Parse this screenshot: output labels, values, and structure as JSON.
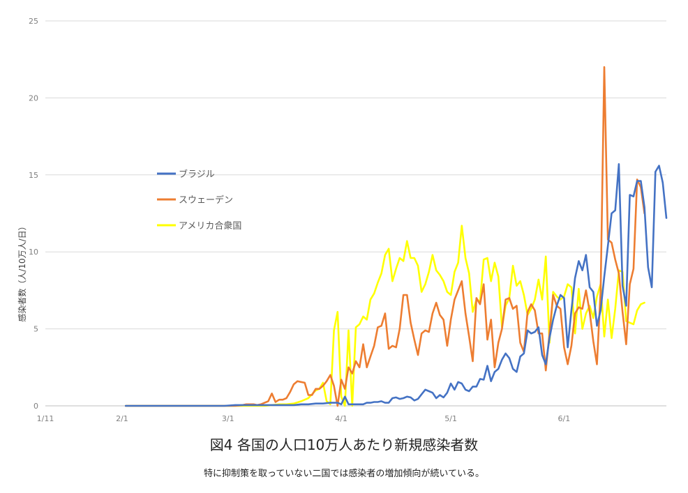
{
  "chart_data": {
    "type": "line",
    "title": "",
    "ylabel": "感染者数（人/10万人/日）",
    "xlabel": "",
    "ylim": [
      0,
      25
    ],
    "yticks": [
      "0",
      "5",
      "10",
      "15",
      "20",
      "25"
    ],
    "xtick_labels": [
      "1/11",
      "2/1",
      "3/1",
      "4/1",
      "5/1",
      "6/1"
    ],
    "grid": "horizontal",
    "legend": "left-center",
    "series": [
      {
        "name": "ブラジル",
        "color": "#4472C4",
        "points": [
          [
            22,
            0
          ],
          [
            30,
            0
          ],
          [
            40,
            0
          ],
          [
            49,
            0
          ],
          [
            52,
            0.05
          ],
          [
            54,
            0.05
          ],
          [
            56,
            0.05
          ],
          [
            58,
            0.05
          ],
          [
            60,
            0.05
          ],
          [
            62,
            0.05
          ],
          [
            64,
            0.05
          ],
          [
            66,
            0.05
          ],
          [
            68,
            0.05
          ],
          [
            70,
            0.1
          ],
          [
            72,
            0.1
          ],
          [
            74,
            0.15
          ],
          [
            76,
            0.15
          ],
          [
            78,
            0.2
          ],
          [
            80,
            0.2
          ],
          [
            81,
            0.1
          ],
          [
            82,
            0.6
          ],
          [
            83,
            0.1
          ],
          [
            84,
            0.1
          ],
          [
            85,
            0.1
          ],
          [
            86,
            0.1
          ],
          [
            87,
            0.1
          ],
          [
            88,
            0.2
          ],
          [
            89,
            0.2
          ],
          [
            90,
            0.25
          ],
          [
            91,
            0.25
          ],
          [
            92,
            0.3
          ],
          [
            93,
            0.2
          ],
          [
            94,
            0.2
          ],
          [
            95,
            0.5
          ],
          [
            96,
            0.55
          ],
          [
            97,
            0.45
          ],
          [
            98,
            0.5
          ],
          [
            99,
            0.6
          ],
          [
            100,
            0.55
          ],
          [
            101,
            0.35
          ],
          [
            102,
            0.45
          ],
          [
            103,
            0.75
          ],
          [
            104,
            1.05
          ],
          [
            105,
            0.95
          ],
          [
            106,
            0.85
          ],
          [
            107,
            0.5
          ],
          [
            108,
            0.7
          ],
          [
            109,
            0.55
          ],
          [
            110,
            0.85
          ],
          [
            111,
            1.45
          ],
          [
            112,
            1.05
          ],
          [
            113,
            1.55
          ],
          [
            114,
            1.45
          ],
          [
            115,
            1.05
          ],
          [
            116,
            0.95
          ],
          [
            117,
            1.25
          ],
          [
            118,
            1.25
          ],
          [
            119,
            1.75
          ],
          [
            120,
            1.7
          ],
          [
            121,
            2.6
          ],
          [
            122,
            1.6
          ],
          [
            123,
            2.2
          ],
          [
            124,
            2.4
          ],
          [
            125,
            3.0
          ],
          [
            126,
            3.4
          ],
          [
            127,
            3.1
          ],
          [
            128,
            2.4
          ],
          [
            129,
            2.2
          ],
          [
            130,
            3.2
          ],
          [
            131,
            3.4
          ],
          [
            132,
            4.9
          ],
          [
            133,
            4.7
          ],
          [
            134,
            4.8
          ],
          [
            135,
            5.1
          ],
          [
            136,
            3.3
          ],
          [
            137,
            2.7
          ],
          [
            138,
            4.4
          ],
          [
            139,
            5.6
          ],
          [
            140,
            6.5
          ],
          [
            141,
            7.2
          ],
          [
            142,
            7.0
          ],
          [
            143,
            3.8
          ],
          [
            144,
            6.2
          ],
          [
            145,
            8.3
          ],
          [
            146,
            9.4
          ],
          [
            147,
            8.8
          ],
          [
            148,
            9.8
          ],
          [
            149,
            7.7
          ],
          [
            150,
            7.4
          ],
          [
            151,
            5.2
          ],
          [
            152,
            6.2
          ],
          [
            153,
            8.4
          ],
          [
            154,
            10.4
          ],
          [
            155,
            12.5
          ],
          [
            156,
            12.7
          ],
          [
            157,
            15.7
          ],
          [
            158,
            7.8
          ],
          [
            159,
            6.5
          ],
          [
            160,
            13.7
          ],
          [
            161,
            13.6
          ],
          [
            162,
            14.6
          ],
          [
            163,
            14.6
          ],
          [
            164,
            12.9
          ],
          [
            165,
            9.0
          ],
          [
            166,
            7.7
          ],
          [
            167,
            15.2
          ],
          [
            168,
            15.6
          ],
          [
            169,
            14.5
          ],
          [
            170,
            12.2
          ]
        ]
      },
      {
        "name": "スウェーデン",
        "color": "#ED7D31",
        "points": [
          [
            22,
            0
          ],
          [
            30,
            0
          ],
          [
            40,
            0
          ],
          [
            49,
            0
          ],
          [
            52,
            0
          ],
          [
            54,
            0.05
          ],
          [
            55,
            0.1
          ],
          [
            56,
            0.1
          ],
          [
            57,
            0.1
          ],
          [
            58,
            0.05
          ],
          [
            59,
            0.1
          ],
          [
            60,
            0.2
          ],
          [
            61,
            0.3
          ],
          [
            62,
            0.8
          ],
          [
            63,
            0.25
          ],
          [
            64,
            0.4
          ],
          [
            65,
            0.4
          ],
          [
            66,
            0.5
          ],
          [
            67,
            0.9
          ],
          [
            68,
            1.4
          ],
          [
            69,
            1.6
          ],
          [
            70,
            1.55
          ],
          [
            71,
            1.5
          ],
          [
            72,
            0.7
          ],
          [
            73,
            0.7
          ],
          [
            74,
            1.1
          ],
          [
            75,
            1.1
          ],
          [
            76,
            1.3
          ],
          [
            77,
            1.6
          ],
          [
            78,
            2.0
          ],
          [
            79,
            1.3
          ],
          [
            80,
            0
          ],
          [
            81,
            1.7
          ],
          [
            82,
            1.1
          ],
          [
            83,
            2.5
          ],
          [
            84,
            2.1
          ],
          [
            85,
            2.9
          ],
          [
            86,
            2.5
          ],
          [
            87,
            4.0
          ],
          [
            88,
            2.5
          ],
          [
            89,
            3.2
          ],
          [
            90,
            3.9
          ],
          [
            91,
            5.1
          ],
          [
            92,
            5.2
          ],
          [
            93,
            6.0
          ],
          [
            94,
            3.7
          ],
          [
            95,
            3.9
          ],
          [
            96,
            3.8
          ],
          [
            97,
            5.0
          ],
          [
            98,
            7.2
          ],
          [
            99,
            7.2
          ],
          [
            100,
            5.4
          ],
          [
            101,
            4.3
          ],
          [
            102,
            3.3
          ],
          [
            103,
            4.7
          ],
          [
            104,
            4.9
          ],
          [
            105,
            4.8
          ],
          [
            106,
            6.0
          ],
          [
            107,
            6.7
          ],
          [
            108,
            5.9
          ],
          [
            109,
            5.6
          ],
          [
            110,
            3.9
          ],
          [
            111,
            5.6
          ],
          [
            112,
            6.9
          ],
          [
            113,
            7.5
          ],
          [
            114,
            8.1
          ],
          [
            115,
            6.0
          ],
          [
            116,
            4.5
          ],
          [
            117,
            2.9
          ],
          [
            118,
            7.0
          ],
          [
            119,
            6.6
          ],
          [
            120,
            7.9
          ],
          [
            121,
            4.3
          ],
          [
            122,
            5.6
          ],
          [
            123,
            2.5
          ],
          [
            124,
            4.1
          ],
          [
            125,
            5.0
          ],
          [
            126,
            6.9
          ],
          [
            127,
            7.0
          ],
          [
            128,
            6.3
          ],
          [
            129,
            6.5
          ],
          [
            130,
            4.1
          ],
          [
            131,
            3.5
          ],
          [
            132,
            6.1
          ],
          [
            133,
            6.6
          ],
          [
            134,
            6.2
          ],
          [
            135,
            4.7
          ],
          [
            136,
            4.7
          ],
          [
            137,
            2.3
          ],
          [
            138,
            4.7
          ],
          [
            139,
            7.2
          ],
          [
            140,
            6.5
          ],
          [
            141,
            6.3
          ],
          [
            142,
            3.8
          ],
          [
            143,
            2.7
          ],
          [
            144,
            3.9
          ],
          [
            145,
            6.0
          ],
          [
            146,
            6.4
          ],
          [
            147,
            6.3
          ],
          [
            148,
            7.5
          ],
          [
            149,
            6.1
          ],
          [
            150,
            4.2
          ],
          [
            151,
            2.7
          ],
          [
            152,
            7.5
          ],
          [
            153,
            22.0
          ],
          [
            154,
            10.8
          ],
          [
            155,
            10.6
          ],
          [
            156,
            9.5
          ],
          [
            157,
            8.6
          ],
          [
            158,
            6.1
          ],
          [
            159,
            4.0
          ],
          [
            160,
            7.9
          ],
          [
            161,
            8.9
          ],
          [
            162,
            14.7
          ],
          [
            163,
            14.2
          ],
          [
            164,
            12.5
          ]
        ]
      },
      {
        "name": "アメリカ合衆国",
        "color": "#FFFF00",
        "points": [
          [
            22,
            0
          ],
          [
            30,
            0
          ],
          [
            40,
            0
          ],
          [
            49,
            0
          ],
          [
            52,
            0
          ],
          [
            54,
            0
          ],
          [
            56,
            0
          ],
          [
            58,
            0
          ],
          [
            60,
            0
          ],
          [
            62,
            0.05
          ],
          [
            64,
            0.1
          ],
          [
            66,
            0.1
          ],
          [
            68,
            0.15
          ],
          [
            70,
            0.3
          ],
          [
            72,
            0.5
          ],
          [
            73,
            0.75
          ],
          [
            74,
            1.0
          ],
          [
            75,
            1.1
          ],
          [
            76,
            1.5
          ],
          [
            77,
            0.3
          ],
          [
            78,
            0.1
          ],
          [
            79,
            4.9
          ],
          [
            80,
            6.1
          ],
          [
            81,
            0.6
          ],
          [
            82,
            0
          ],
          [
            83,
            4.9
          ],
          [
            84,
            0
          ],
          [
            85,
            5.1
          ],
          [
            86,
            5.3
          ],
          [
            87,
            5.8
          ],
          [
            88,
            5.6
          ],
          [
            89,
            6.9
          ],
          [
            90,
            7.3
          ],
          [
            91,
            8.0
          ],
          [
            92,
            8.6
          ],
          [
            93,
            9.8
          ],
          [
            94,
            10.2
          ],
          [
            95,
            8.1
          ],
          [
            96,
            8.9
          ],
          [
            97,
            9.6
          ],
          [
            98,
            9.4
          ],
          [
            99,
            10.7
          ],
          [
            100,
            9.6
          ],
          [
            101,
            9.6
          ],
          [
            102,
            9.1
          ],
          [
            103,
            7.4
          ],
          [
            104,
            7.9
          ],
          [
            105,
            8.7
          ],
          [
            106,
            9.8
          ],
          [
            107,
            8.8
          ],
          [
            108,
            8.5
          ],
          [
            109,
            8.1
          ],
          [
            110,
            7.4
          ],
          [
            111,
            7.2
          ],
          [
            112,
            8.7
          ],
          [
            113,
            9.3
          ],
          [
            114,
            11.7
          ],
          [
            115,
            9.6
          ],
          [
            116,
            8.6
          ],
          [
            117,
            6.1
          ],
          [
            118,
            6.9
          ],
          [
            119,
            6.8
          ],
          [
            120,
            9.5
          ],
          [
            121,
            9.6
          ],
          [
            122,
            8.1
          ],
          [
            123,
            9.3
          ],
          [
            124,
            8.4
          ],
          [
            125,
            5.1
          ],
          [
            126,
            6.5
          ],
          [
            127,
            7.0
          ],
          [
            128,
            9.1
          ],
          [
            129,
            7.8
          ],
          [
            130,
            8.1
          ],
          [
            131,
            7.2
          ],
          [
            132,
            5.9
          ],
          [
            133,
            6.3
          ],
          [
            134,
            6.9
          ],
          [
            135,
            8.2
          ],
          [
            136,
            6.9
          ],
          [
            137,
            9.7
          ],
          [
            138,
            4.1
          ],
          [
            139,
            7.4
          ],
          [
            140,
            7.1
          ],
          [
            141,
            6.9
          ],
          [
            142,
            7.1
          ],
          [
            143,
            7.9
          ],
          [
            144,
            7.7
          ],
          [
            145,
            4.7
          ],
          [
            146,
            7.6
          ],
          [
            147,
            5.0
          ],
          [
            148,
            6.0
          ],
          [
            149,
            6.5
          ],
          [
            150,
            5.7
          ],
          [
            151,
            7.1
          ],
          [
            152,
            7.9
          ],
          [
            153,
            4.5
          ],
          [
            154,
            6.9
          ],
          [
            155,
            4.4
          ],
          [
            156,
            6.3
          ],
          [
            157,
            8.8
          ],
          [
            158,
            8.7
          ],
          [
            159,
            5.5
          ],
          [
            160,
            5.4
          ],
          [
            161,
            5.3
          ],
          [
            162,
            6.2
          ],
          [
            163,
            6.6
          ],
          [
            164,
            6.7
          ]
        ]
      }
    ]
  },
  "caption": {
    "title": "図4 各国の人口10万人あたり新規感染者数",
    "subtitle": "特に抑制策を取っていない二国では感染者の増加傾向が続いている。"
  }
}
